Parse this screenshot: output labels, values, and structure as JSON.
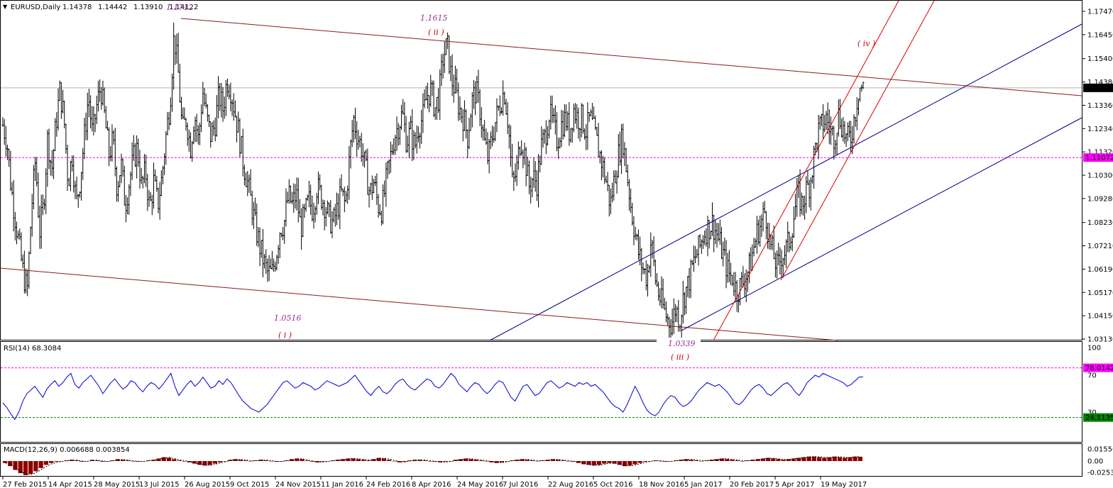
{
  "colors": {
    "background": "#ffffff",
    "bars": "#000000",
    "rsi_line": "#0000cc",
    "channel_brown": "#8b1a1a",
    "channel_blue": "#00008b",
    "channel_red": "#e00000",
    "level_magenta": "#ff00ff",
    "level_green": "#008000",
    "annotation_purple": "#9b2d9b",
    "annotation_red": "#cc0000",
    "macd_hist": "#8b0000"
  },
  "chart_data": [
    {
      "type": "ohlc",
      "panel": "main",
      "header": {
        "symbol": "EURUSD,Daily",
        "open": "1.14378",
        "high": "1.14442",
        "low": "1.13910",
        "close": "1.14122"
      },
      "x_tick_labels": [
        "27 Feb 2015",
        "14 Apr 2015",
        "28 May 2015",
        "13 Jul 2015",
        "26 Aug 2015",
        "9 Oct 2015",
        "24 Nov 2015",
        "11 Jan 2016",
        "24 Feb 2016",
        "8 Apr 2016",
        "24 May 2016",
        "7 Jul 2016",
        "22 Aug 2016",
        "5 Oct 2016",
        "18 Nov 2016",
        "5 Jan 2017",
        "20 Feb 2017",
        "5 Apr 2017",
        "19 May 2017"
      ],
      "y_tick_labels": [
        "1.17470",
        "1.16450",
        "1.15400",
        "1.14380",
        "1.13360",
        "1.12340",
        "1.11320",
        "1.10300",
        "1.09280",
        "1.08230",
        "1.07210",
        "1.06190",
        "1.05170",
        "1.04150",
        "1.03130"
      ],
      "ylim": [
        1.0313,
        1.1747
      ],
      "current_price": "1.14122",
      "level_line": "1.11072",
      "close_path": [
        1.125,
        1.118,
        1.098,
        1.085,
        1.072,
        1.06,
        1.052,
        1.088,
        1.11,
        1.078,
        1.09,
        1.12,
        1.105,
        1.125,
        1.14,
        1.128,
        1.1,
        1.112,
        1.09,
        1.102,
        1.12,
        1.138,
        1.12,
        1.133,
        1.142,
        1.128,
        1.112,
        1.118,
        1.098,
        1.108,
        1.09,
        1.1,
        1.11,
        1.115,
        1.098,
        1.105,
        1.088,
        1.1,
        1.09,
        1.102,
        1.12,
        1.135,
        1.165,
        1.148,
        1.122,
        1.128,
        1.115,
        1.13,
        1.118,
        1.14,
        1.128,
        1.12,
        1.125,
        1.138,
        1.132,
        1.145,
        1.14,
        1.13,
        1.12,
        1.108,
        1.1,
        1.09,
        1.08,
        1.072,
        1.065,
        1.06,
        1.06,
        1.068,
        1.08,
        1.082,
        1.094,
        1.09,
        1.095,
        1.08,
        1.085,
        1.092,
        1.088,
        1.098,
        1.094,
        1.09,
        1.084,
        1.082,
        1.088,
        1.095,
        1.09,
        1.11,
        1.128,
        1.12,
        1.115,
        1.105,
        1.095,
        1.1,
        1.09,
        1.088,
        1.1,
        1.11,
        1.12,
        1.125,
        1.13,
        1.118,
        1.122,
        1.115,
        1.125,
        1.128,
        1.138,
        1.14,
        1.132,
        1.138,
        1.155,
        1.16,
        1.145,
        1.14,
        1.132,
        1.128,
        1.12,
        1.135,
        1.14,
        1.132,
        1.118,
        1.11,
        1.12,
        1.128,
        1.135,
        1.14,
        1.125,
        1.098,
        1.105,
        1.12,
        1.112,
        1.098,
        1.102,
        1.1,
        1.115,
        1.12,
        1.13,
        1.125,
        1.118,
        1.125,
        1.128,
        1.122,
        1.132,
        1.128,
        1.128,
        1.122,
        1.128,
        1.122,
        1.115,
        1.108,
        1.1,
        1.09,
        1.102,
        1.112,
        1.12,
        1.105,
        1.09,
        1.078,
        1.068,
        1.062,
        1.058,
        1.075,
        1.058,
        1.05,
        1.045,
        1.04,
        1.038,
        1.045,
        1.04,
        1.05,
        1.055,
        1.062,
        1.068,
        1.072,
        1.078,
        1.08,
        1.082,
        1.078,
        1.072,
        1.066,
        1.06,
        1.058,
        1.052,
        1.055,
        1.058,
        1.062,
        1.07,
        1.078,
        1.082,
        1.088,
        1.074,
        1.068,
        1.062,
        1.068,
        1.07,
        1.075,
        1.085,
        1.095,
        1.09,
        1.096,
        1.1,
        1.112,
        1.122,
        1.125,
        1.128,
        1.122,
        1.12,
        1.13,
        1.124,
        1.118,
        1.12,
        1.13,
        1.142,
        1.141
      ],
      "markers": [
        {
          "label": "1.1712",
          "price": 1.1712
        },
        {
          "label": "1.1615",
          "price": 1.1615,
          "wave": "( ii )"
        },
        {
          "label": "1.0516",
          "price": 1.0516,
          "wave": "( i )"
        },
        {
          "label": "1.0339",
          "price": 1.0339,
          "wave": "( iii )"
        },
        {
          "wave": "( iv )"
        }
      ]
    },
    {
      "type": "line",
      "panel": "rsi",
      "title": "RSI(14) 68.3084",
      "y_tick_labels": [
        "100",
        "70",
        "30",
        "0"
      ],
      "ylim": [
        0,
        100
      ],
      "levels": [
        {
          "label": "78.0142",
          "value": 78.0142
        },
        {
          "label": "24.1135",
          "value": 24.1135
        }
      ],
      "values": [
        40,
        35,
        28,
        22,
        30,
        42,
        50,
        54,
        58,
        52,
        46,
        55,
        60,
        64,
        58,
        62,
        68,
        72,
        60,
        56,
        62,
        66,
        70,
        64,
        58,
        50,
        56,
        62,
        66,
        60,
        55,
        58,
        64,
        62,
        56,
        52,
        58,
        62,
        60,
        55,
        60,
        66,
        72,
        58,
        48,
        54,
        60,
        64,
        58,
        62,
        68,
        62,
        56,
        58,
        64,
        60,
        66,
        62,
        55,
        48,
        42,
        38,
        34,
        32,
        30,
        34,
        38,
        44,
        50,
        56,
        62,
        64,
        60,
        56,
        58,
        62,
        60,
        58,
        54,
        56,
        60,
        64,
        62,
        60,
        58,
        60,
        62,
        66,
        70,
        64,
        58,
        52,
        48,
        54,
        58,
        52,
        50,
        54,
        60,
        64,
        66,
        60,
        56,
        54,
        58,
        62,
        66,
        64,
        58,
        56,
        60,
        66,
        72,
        68,
        60,
        56,
        52,
        58,
        62,
        60,
        54,
        50,
        54,
        60,
        64,
        62,
        54,
        46,
        42,
        50,
        58,
        60,
        54,
        48,
        50,
        56,
        62,
        64,
        60,
        56,
        58,
        62,
        60,
        58,
        62,
        60,
        62,
        58,
        60,
        56,
        52,
        46,
        40,
        36,
        34,
        30,
        38,
        48,
        58,
        50,
        40,
        32,
        28,
        26,
        30,
        38,
        44,
        48,
        46,
        40,
        36,
        38,
        42,
        48,
        54,
        58,
        62,
        60,
        58,
        60,
        56,
        52,
        46,
        40,
        38,
        42,
        48,
        54,
        58,
        60,
        56,
        50,
        48,
        52,
        56,
        60,
        62,
        58,
        52,
        48,
        54,
        62,
        66,
        70,
        68,
        72,
        70,
        68,
        66,
        64,
        62,
        58,
        60,
        64,
        68,
        68.3
      ]
    },
    {
      "type": "bar",
      "panel": "macd",
      "title": "MACD(12,26,9) 0.006688 0.003854",
      "y_tick_labels": [
        "0.015564",
        "0.00",
        "-0.025329"
      ],
      "ylim": [
        -0.025329,
        0.015564
      ],
      "values": [
        -0.003,
        -0.008,
        -0.014,
        -0.019,
        -0.022,
        -0.02,
        -0.016,
        -0.011,
        -0.006,
        -0.003,
        -0.001,
        0.0,
        0.001,
        0.002,
        0.001,
        -0.001,
        0.0,
        0.002,
        0.001,
        -0.001,
        0.0,
        0.001,
        0.003,
        0.002,
        0.001,
        0.0,
        -0.001,
        0.0,
        0.001,
        0.002,
        0.004,
        0.006,
        0.005,
        0.003,
        0.001,
        0.0,
        -0.002,
        -0.004,
        -0.006,
        -0.007,
        -0.006,
        -0.004,
        -0.002,
        0.0,
        0.002,
        0.003,
        0.002,
        0.001,
        0.0,
        0.001,
        0.002,
        0.001,
        0.0,
        -0.001,
        0.0,
        0.001,
        0.003,
        0.004,
        0.003,
        0.001,
        -0.001,
        -0.002,
        -0.001,
        0.0,
        0.001,
        0.002,
        0.003,
        0.004,
        0.004,
        0.003,
        0.002,
        0.001,
        0.003,
        0.005,
        0.004,
        0.002,
        0.0,
        -0.002,
        -0.001,
        0.001,
        0.002,
        0.002,
        0.001,
        0.0,
        -0.001,
        -0.002,
        -0.001,
        0.0,
        0.002,
        0.003,
        0.004,
        0.003,
        0.002,
        0.001,
        0.0,
        -0.002,
        -0.003,
        -0.002,
        0.0,
        0.001,
        0.002,
        0.003,
        0.002,
        0.001,
        0.0,
        0.001,
        0.002,
        0.003,
        0.002,
        0.001,
        0.0,
        -0.001,
        -0.003,
        -0.005,
        -0.006,
        -0.007,
        -0.006,
        -0.004,
        -0.003,
        -0.004,
        -0.006,
        -0.008,
        -0.007,
        -0.005,
        -0.003,
        -0.001,
        0.0,
        0.001,
        0.0,
        -0.001,
        0.0,
        0.001,
        0.002,
        0.003,
        0.002,
        0.001,
        0.0,
        0.001,
        0.002,
        0.003,
        0.004,
        0.003,
        0.002,
        0.001,
        0.0,
        0.001,
        0.002,
        0.003,
        0.004,
        0.005,
        0.004,
        0.003,
        0.002,
        0.003,
        0.004,
        0.005,
        0.006,
        0.007,
        0.007,
        0.006,
        0.005,
        0.006,
        0.007,
        0.006,
        0.005,
        0.006,
        0.007,
        0.0067
      ]
    }
  ]
}
